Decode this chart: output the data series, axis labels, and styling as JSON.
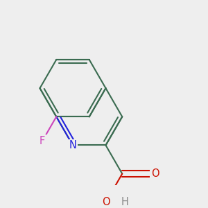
{
  "background_color": "#eeeeee",
  "bond_color": "#3a6b50",
  "n_color": "#2222dd",
  "o_color": "#cc1100",
  "f_color": "#cc44bb",
  "h_color": "#888888",
  "bond_width": 1.5,
  "font_size": 10.5,
  "dpi": 100,
  "xlim": [
    30,
    270
  ],
  "ylim": [
    60,
    250
  ]
}
